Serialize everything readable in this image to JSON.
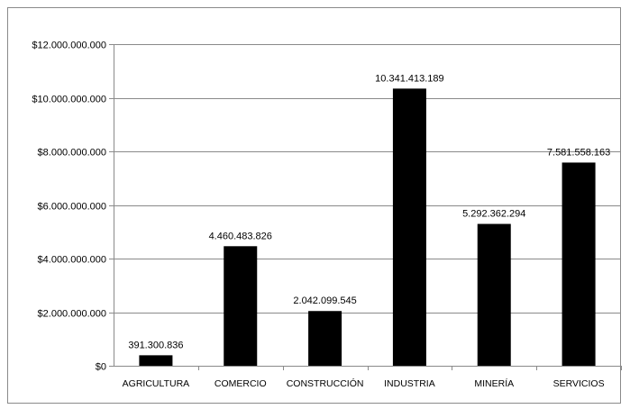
{
  "chart_data": {
    "type": "bar",
    "categories": [
      "AGRICULTURA",
      "COMERCIO",
      "CONSTRUCCIÓN",
      "INDUSTRIA",
      "MINERÍA",
      "SERVICIOS"
    ],
    "values": [
      391300836,
      4460483826,
      2042099545,
      10341413189,
      5292362294,
      7581558163
    ],
    "data_labels": [
      "391.300.836",
      "4.460.483.826",
      "2.042.099.545",
      "10.341.413.189",
      "5.292.362.294",
      "7.581.558.163"
    ],
    "yticks": [
      0,
      2000000000,
      4000000000,
      6000000000,
      8000000000,
      10000000000,
      12000000000
    ],
    "ytick_labels": [
      "$0",
      "$2.000.000.000",
      "$4.000.000.000",
      "$6.000.000.000",
      "$8.000.000.000",
      "$10.000.000.000",
      "$12.000.000.000"
    ],
    "ylim": [
      0,
      12000000000
    ],
    "title": "",
    "xlabel": "",
    "ylabel": "",
    "grid": true,
    "legend": "none",
    "bar_color": "#000000",
    "grid_color": "#8a8a8a"
  }
}
